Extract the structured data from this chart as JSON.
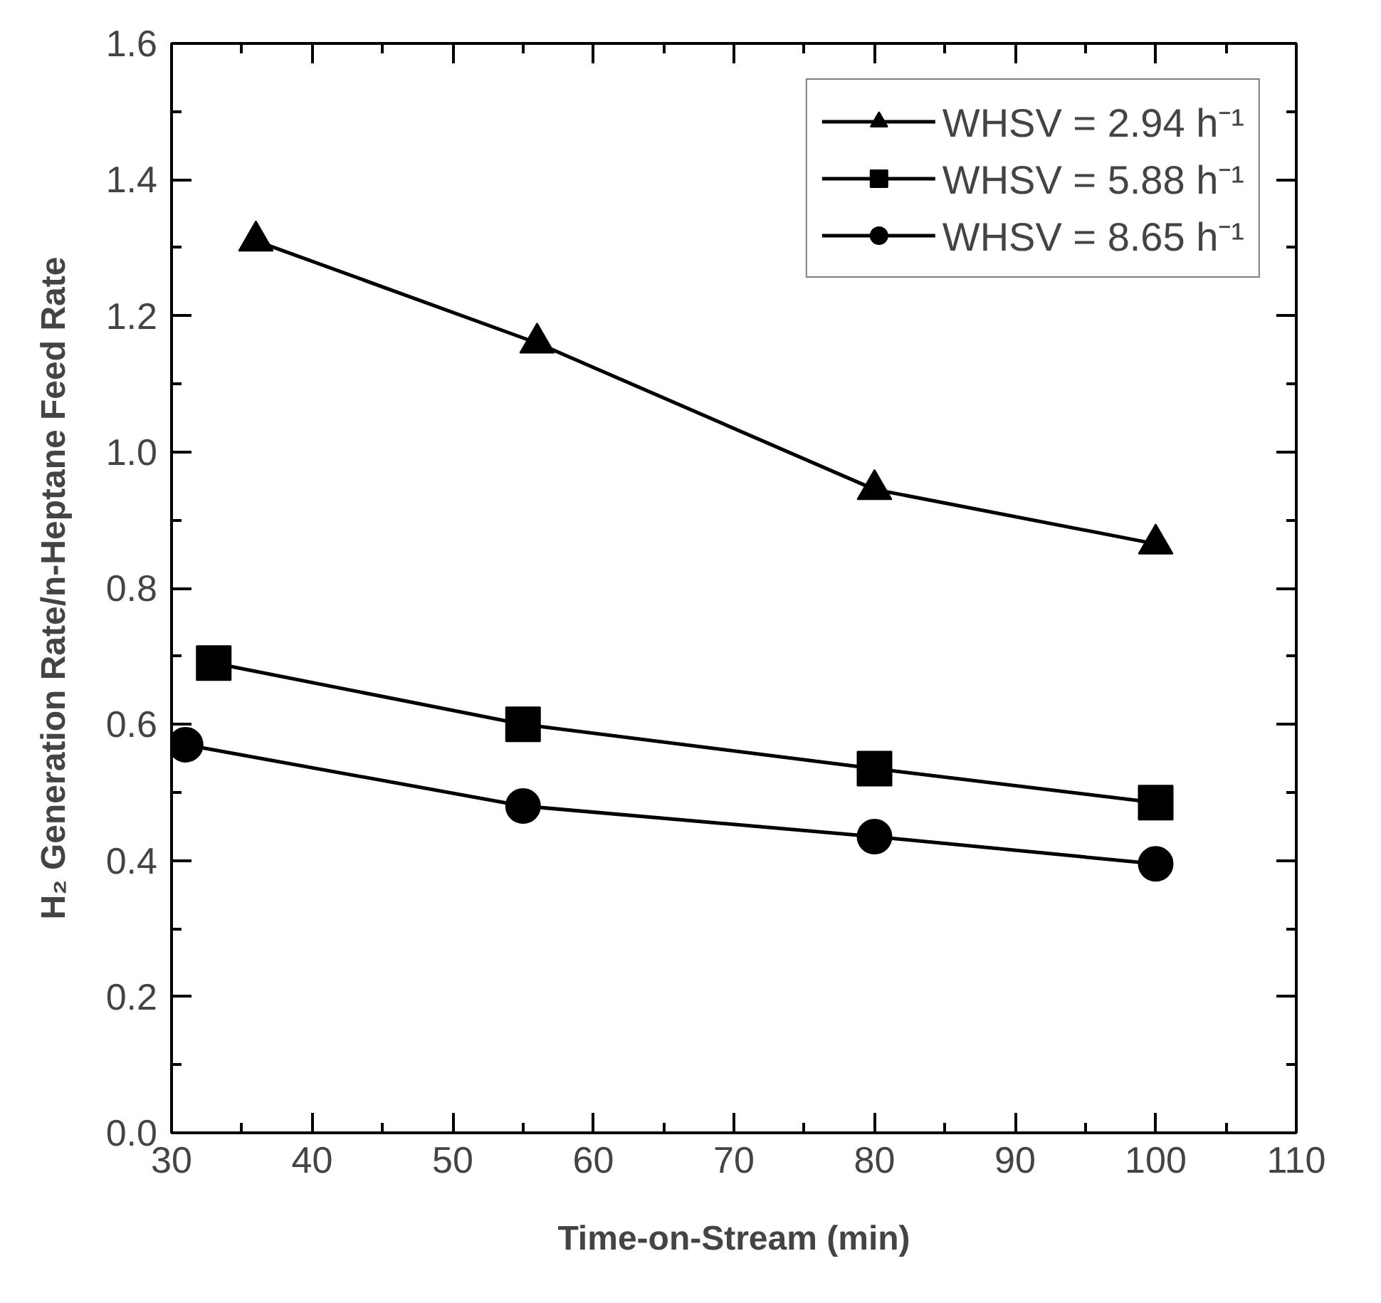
{
  "chart_data": {
    "type": "line",
    "xlabel": "Time-on-Stream (min)",
    "ylabel": "H₂ Generation Rate/n-Heptane Feed Rate",
    "xlim": [
      30,
      110
    ],
    "xticks": [
      30,
      40,
      50,
      60,
      70,
      80,
      90,
      100,
      110
    ],
    "ylim": [
      0,
      1.6
    ],
    "yticks": [
      {
        "value": 0,
        "label": "0.0"
      },
      {
        "value": 0.2,
        "label": "0.2"
      },
      {
        "value": 0.4,
        "label": "0.4"
      },
      {
        "value": 0.6,
        "label": "0.6"
      },
      {
        "value": 0.8,
        "label": "0.8"
      },
      {
        "value": 1.0,
        "label": "1.0"
      },
      {
        "value": 1.2,
        "label": "1.2"
      },
      {
        "value": 1.4,
        "label": "1.4"
      },
      {
        "value": 1.6,
        "label": "1.6"
      }
    ],
    "grid": false,
    "legend": "top right",
    "line_style": "solid",
    "series": [
      {
        "name": "WHSV = 2.94 h⁻¹",
        "color": "#000000",
        "marker": "triangle",
        "x": [
          36,
          56,
          80,
          100
        ],
        "values": [
          1.31,
          1.16,
          0.945,
          0.865
        ]
      },
      {
        "name": "WHSV = 5.88 h⁻¹",
        "color": "#000000",
        "marker": "square",
        "x": [
          33,
          55,
          80,
          100
        ],
        "values": [
          0.69,
          0.6,
          0.535,
          0.485
        ]
      },
      {
        "name": "WHSV = 8.65 h⁻¹",
        "color": "#000000",
        "marker": "circle",
        "x": [
          31,
          55,
          80,
          100
        ],
        "values": [
          0.57,
          0.48,
          0.435,
          0.395
        ]
      }
    ]
  }
}
